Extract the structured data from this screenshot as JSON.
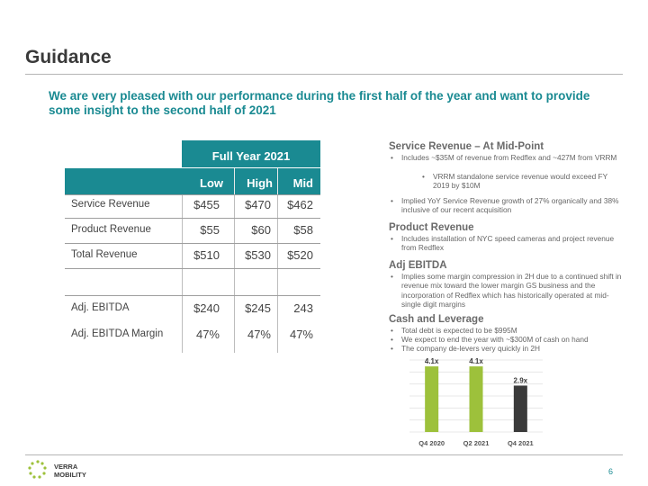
{
  "title": "Guidance",
  "subtitle": "We are very pleased with our performance during the first half of the year and want to provide some insight to the second half of 2021",
  "table": {
    "caption": "Full Year 2021",
    "columns": [
      "Low",
      "High",
      "Mid"
    ],
    "rows": [
      {
        "label": "Service Revenue",
        "values": [
          "$455",
          "$470",
          "$462"
        ]
      },
      {
        "label": "Product Revenue",
        "values": [
          "$55",
          "$60",
          "$58"
        ]
      },
      {
        "label": "Total Revenue",
        "values": [
          "$510",
          "$530",
          "$520"
        ]
      },
      {
        "label": "Adj. EBITDA",
        "values": [
          "$240",
          "$245",
          "243"
        ]
      },
      {
        "label": "Adj. EBITDA Margin",
        "values": [
          "47%",
          "47%",
          "47%"
        ]
      }
    ]
  },
  "sections": {
    "service": {
      "heading": "Service Revenue – At Mid-Point",
      "b1": "Includes ~$35M of revenue from Redflex and ~427M from VRRM",
      "b1_sub": "VRRM standalone service revenue would exceed FY 2019 by $10M",
      "b2": "Implied YoY Service Revenue growth of 27% organically and 38% inclusive of our recent acquisition"
    },
    "product": {
      "heading": "Product Revenue",
      "b1": "Includes installation of NYC speed cameras and project revenue from Redflex"
    },
    "ebitda": {
      "heading": "Adj EBITDA",
      "b1": "Implies some margin compression in 2H due to a continued shift in revenue mix toward the lower margin GS business and the incorporation of Redflex which has historically operated at mid-single digit margins"
    },
    "cash": {
      "heading": "Cash and Leverage",
      "b1": "Total debt is expected to be $995M",
      "b2": "We expect to end the year with ~$300M of cash on hand",
      "b3": "The company de-levers very quickly in 2H"
    }
  },
  "chart_data": {
    "type": "bar",
    "categories": [
      "Q4 2020",
      "Q2 2021",
      "Q4 2021"
    ],
    "values": [
      4.1,
      4.1,
      2.9
    ],
    "data_labels": [
      "4.1x",
      "4.1x",
      "2.9x"
    ],
    "colors": [
      "#9dc13b",
      "#9dc13b",
      "#3a3a3a"
    ],
    "ylim": [
      0,
      4.5
    ],
    "grid": true,
    "title": "",
    "xlabel": "",
    "ylabel": ""
  },
  "logo": {
    "line1": "VERRA",
    "line2": "MOBILITY"
  },
  "page_number": "6",
  "colors": {
    "teal": "#1a8a92",
    "green": "#9dc13b",
    "dark": "#3a3a3a"
  }
}
